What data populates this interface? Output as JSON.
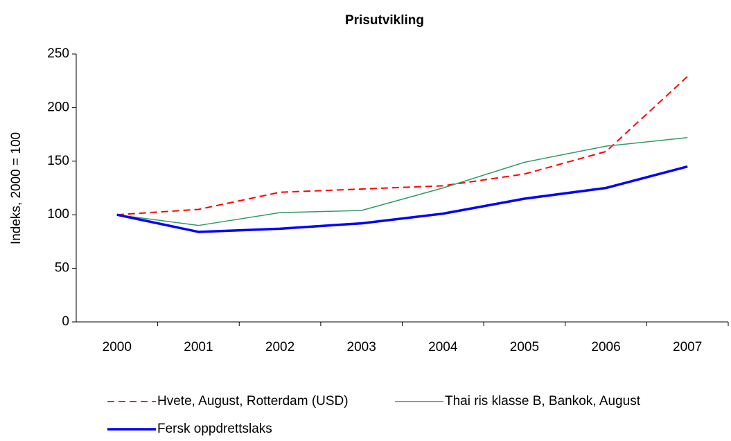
{
  "chart_data": {
    "type": "line",
    "title": "Prisutvikling",
    "y_label": "Indeks, 2000 = 100",
    "categories": [
      "2000",
      "2001",
      "2002",
      "2003",
      "2004",
      "2005",
      "2006",
      "2007"
    ],
    "series": [
      {
        "name": "Hvete, August, Rotterdam (USD)",
        "color": "#ff0000",
        "line_style": "dashed",
        "width": 2,
        "values": [
          100,
          105,
          121,
          124,
          127,
          138,
          159,
          229
        ]
      },
      {
        "name": "Thai ris klasse B, Bankok, August",
        "color": "#339966",
        "line_style": "solid",
        "width": 1.5,
        "values": [
          100,
          90,
          102,
          104,
          125,
          149,
          164,
          172
        ]
      },
      {
        "name": "Fersk oppdrettslaks",
        "color": "#0000ff",
        "line_style": "solid",
        "width": 3.5,
        "values": [
          100,
          84,
          87,
          92,
          101,
          115,
          125,
          145
        ]
      }
    ],
    "ylim": [
      0,
      250
    ],
    "yticks": [
      0,
      50,
      100,
      150,
      200,
      250
    ],
    "grid": false,
    "legend": "bottom"
  }
}
